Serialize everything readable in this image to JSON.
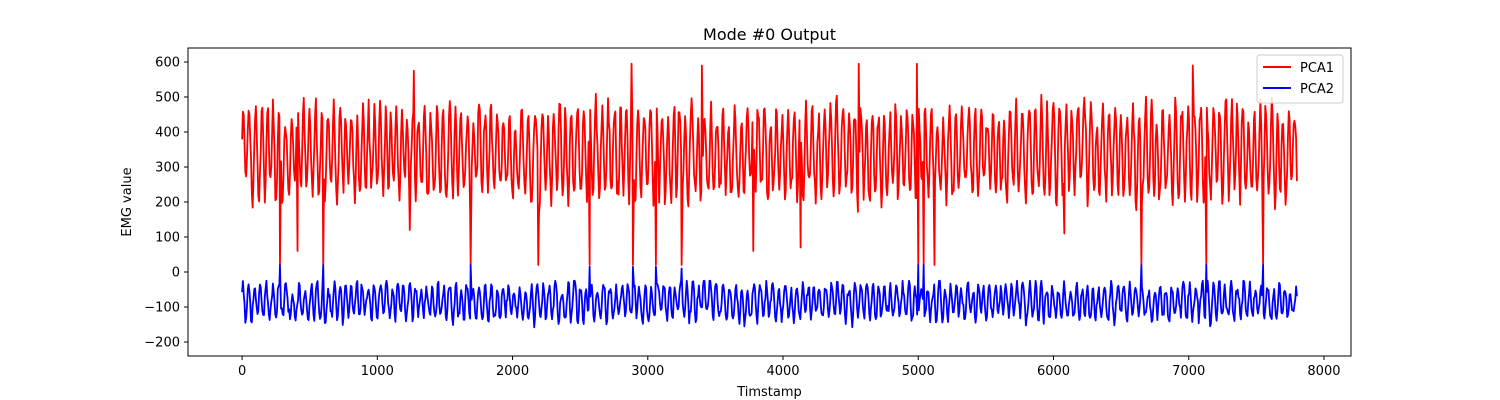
{
  "chart_data": {
    "type": "line",
    "title": "Mode #0 Output",
    "xlabel": "Timstamp",
    "ylabel": "EMG value",
    "xlim": [
      -400,
      8200
    ],
    "ylim": [
      -240,
      640
    ],
    "x_ticks": [
      0,
      1000,
      2000,
      3000,
      4000,
      5000,
      6000,
      7000,
      8000
    ],
    "x_tick_labels": [
      "0",
      "1000",
      "2000",
      "3000",
      "4000",
      "5000",
      "6000",
      "7000",
      "8000"
    ],
    "y_ticks": [
      -200,
      -100,
      0,
      100,
      200,
      300,
      400,
      500,
      600
    ],
    "y_tick_labels": [
      "−200",
      "−100",
      "0",
      "100",
      "200",
      "300",
      "400",
      "500",
      "600"
    ],
    "grid": false,
    "legend_position": "top-right",
    "series": [
      {
        "name": "PCA1",
        "color": "#ff0000",
        "x_range": [
          0,
          7800
        ],
        "approx_mean": 340,
        "approx_min": 20,
        "approx_max": 595,
        "dip_points": [
          {
            "x": 280,
            "y": 20
          },
          {
            "x": 410,
            "y": 60
          },
          {
            "x": 600,
            "y": 20
          },
          {
            "x": 1240,
            "y": 120
          },
          {
            "x": 1690,
            "y": 20
          },
          {
            "x": 2190,
            "y": 20
          },
          {
            "x": 2570,
            "y": 20
          },
          {
            "x": 2890,
            "y": 20
          },
          {
            "x": 3060,
            "y": 20
          },
          {
            "x": 3250,
            "y": 20
          },
          {
            "x": 3780,
            "y": 60
          },
          {
            "x": 4130,
            "y": 70
          },
          {
            "x": 5000,
            "y": 20
          },
          {
            "x": 5040,
            "y": 20
          },
          {
            "x": 5120,
            "y": 20
          },
          {
            "x": 6080,
            "y": 110
          },
          {
            "x": 6650,
            "y": 20
          },
          {
            "x": 7130,
            "y": 20
          },
          {
            "x": 7550,
            "y": 20
          }
        ],
        "peak_points": [
          {
            "x": 1270,
            "y": 575
          },
          {
            "x": 2880,
            "y": 595
          },
          {
            "x": 3400,
            "y": 590
          },
          {
            "x": 4560,
            "y": 595
          },
          {
            "x": 4990,
            "y": 595
          },
          {
            "x": 7030,
            "y": 590
          }
        ]
      },
      {
        "name": "PCA2",
        "color": "#0000ff",
        "x_range": [
          0,
          7800
        ],
        "approx_mean": -85,
        "approx_min": -200,
        "approx_max": 20,
        "spike_points": [
          {
            "x": 280,
            "y": 20
          },
          {
            "x": 600,
            "y": 20
          },
          {
            "x": 1690,
            "y": 20
          },
          {
            "x": 2570,
            "y": 15
          },
          {
            "x": 2890,
            "y": 15
          },
          {
            "x": 3060,
            "y": 15
          },
          {
            "x": 3250,
            "y": 10
          },
          {
            "x": 5000,
            "y": 20
          },
          {
            "x": 5040,
            "y": 20
          },
          {
            "x": 6650,
            "y": 20
          },
          {
            "x": 7130,
            "y": 20
          },
          {
            "x": 7550,
            "y": 20
          }
        ]
      }
    ]
  }
}
